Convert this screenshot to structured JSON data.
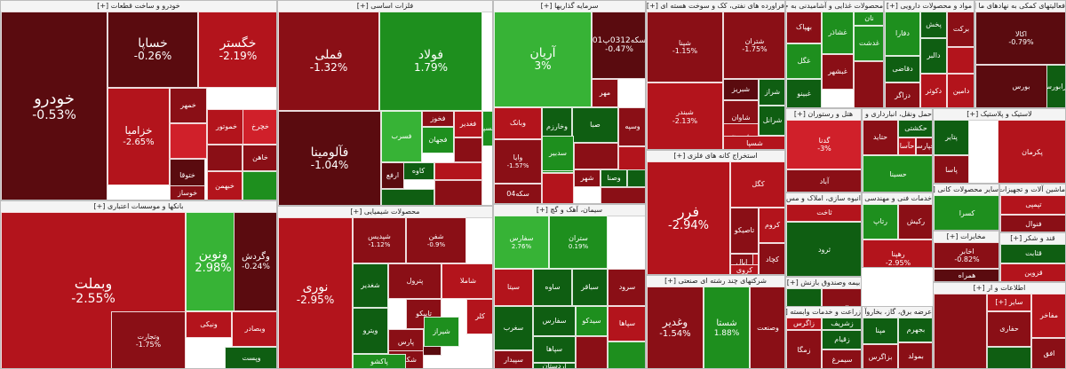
{
  "colors": {
    "deep_red": "#5a0b0f",
    "dark_red": "#8a0f16",
    "red": "#b3141c",
    "light_red": "#d0202a",
    "dark_green": "#0f5e12",
    "green": "#1e8f1e",
    "light_green": "#37b336"
  },
  "sectors": [
    {
      "title": "خودرو و ساخت قطعات [+]",
      "tiles": [
        {
          "name": "خودرو",
          "pct": "-0.53%",
          "color": "deep_red"
        },
        {
          "name": "خساپا",
          "pct": "-0.26%",
          "color": "deep_red"
        },
        {
          "name": "خگستر",
          "pct": "-2.19%",
          "color": "red"
        },
        {
          "name": "خزامیا",
          "pct": "-2.65%",
          "color": "red"
        },
        {
          "name": "خمهر",
          "pct": "",
          "color": "dark_red"
        },
        {
          "name": "ختوقا",
          "pct": "",
          "color": "deep_red"
        },
        {
          "name": "خموتور",
          "pct": "",
          "color": "red"
        },
        {
          "name": "خوساز",
          "pct": "",
          "color": "dark_red"
        },
        {
          "name": "خبهمن",
          "pct": "",
          "color": "red"
        },
        {
          "name": "خاهن",
          "pct": "",
          "color": "dark_red"
        },
        {
          "name": "خچرخ",
          "pct": "",
          "color": "light_red"
        }
      ]
    },
    {
      "title": "بانکها و موسسات اعتباری [+]",
      "tiles": [
        {
          "name": "وبملت",
          "pct": "-2.55%",
          "color": "red"
        },
        {
          "name": "ونوین",
          "pct": "2.98%",
          "color": "light_green"
        },
        {
          "name": "وگردش",
          "pct": "-0.24%",
          "color": "deep_red"
        },
        {
          "name": "ونیکی",
          "pct": "",
          "color": "red"
        },
        {
          "name": "وتجارت",
          "pct": "-1.75%",
          "color": "dark_red"
        },
        {
          "name": "وبصادر",
          "pct": "",
          "color": "red"
        },
        {
          "name": "وپست",
          "pct": "",
          "color": "dark_green"
        }
      ]
    },
    {
      "title": "فلزات اساسی [+]",
      "tiles": [
        {
          "name": "فملی",
          "pct": "-1.32%",
          "color": "dark_red"
        },
        {
          "name": "فولاد",
          "pct": "1.79%",
          "color": "green"
        },
        {
          "name": "فآلومینا",
          "pct": "-1.04%",
          "color": "deep_red"
        },
        {
          "name": "فسرب",
          "pct": "",
          "color": "light_green"
        },
        {
          "name": "فخوز",
          "pct": "",
          "color": "dark_red"
        },
        {
          "name": "فغدیر",
          "pct": "",
          "color": "red"
        },
        {
          "name": "فجهان",
          "pct": "",
          "color": "green"
        },
        {
          "name": "کاوه",
          "pct": "",
          "color": "dark_green"
        },
        {
          "name": "ارفع",
          "pct": "",
          "color": "deep_red"
        },
        {
          "name": "فسپا",
          "pct": "",
          "color": "green"
        }
      ]
    },
    {
      "title": "محصولات شیمیایی [+]",
      "tiles": [
        {
          "name": "نوری",
          "pct": "-2.95%",
          "color": "red"
        },
        {
          "name": "شپدیس",
          "pct": "-1.12%",
          "color": "dark_red"
        },
        {
          "name": "شفن",
          "pct": "-0.9%",
          "color": "dark_red"
        },
        {
          "name": "شغدیر",
          "pct": "",
          "color": "dark_green"
        },
        {
          "name": "پترول",
          "pct": "",
          "color": "dark_red"
        },
        {
          "name": "شاملا",
          "pct": "",
          "color": "red"
        },
        {
          "name": "تاپیکو",
          "pct": "",
          "color": "dark_red"
        },
        {
          "name": "آریا",
          "pct": "",
          "color": "deep_red"
        },
        {
          "name": "شیراز",
          "pct": "",
          "color": "green"
        },
        {
          "name": "ویترو",
          "pct": "",
          "color": "dark_green"
        },
        {
          "name": "پارس",
          "pct": "",
          "color": "dark_red"
        },
        {
          "name": "شکربن",
          "pct": "",
          "color": "dark_red"
        },
        {
          "name": "پاکشو",
          "pct": "",
          "color": "green"
        },
        {
          "name": "کلر",
          "pct": "",
          "color": "red"
        }
      ]
    },
    {
      "title": "سرمایه گذاریها [+]",
      "tiles": [
        {
          "name": "آریان",
          "pct": "3%",
          "color": "light_green"
        },
        {
          "name": "سکه0312پ01",
          "pct": "-0.47%",
          "color": "deep_red"
        },
        {
          "name": "وسپه",
          "pct": "",
          "color": "dark_red"
        },
        {
          "name": "صبا",
          "pct": "",
          "color": "dark_green"
        },
        {
          "name": "وخارزم",
          "pct": "",
          "color": "dark_green"
        },
        {
          "name": "مهر",
          "pct": "",
          "color": "dark_red"
        },
        {
          "name": "وبانک",
          "pct": "",
          "color": "red"
        },
        {
          "name": "وایا",
          "pct": "-1.57%",
          "color": "dark_red"
        },
        {
          "name": "والبر",
          "pct": "",
          "color": "green"
        },
        {
          "name": "سدبیر",
          "pct": "",
          "color": "green"
        },
        {
          "name": "شهر",
          "pct": "",
          "color": "dark_red"
        },
        {
          "name": "وصنا",
          "pct": "",
          "color": "dark_green"
        },
        {
          "name": "سکه04",
          "pct": "",
          "color": "dark_red"
        }
      ]
    },
    {
      "title": "سیمان، آهک و گچ [+]",
      "tiles": [
        {
          "name": "سفارس",
          "pct": "2.76%",
          "color": "light_green"
        },
        {
          "name": "ستران",
          "pct": "0.19%",
          "color": "green"
        },
        {
          "name": "سیتا",
          "pct": "",
          "color": "red"
        },
        {
          "name": "ساوه",
          "pct": "",
          "color": "dark_green"
        },
        {
          "name": "سباقر",
          "pct": "",
          "color": "dark_green"
        },
        {
          "name": "سرود",
          "pct": "",
          "color": "dark_red"
        },
        {
          "name": "سفارس",
          "pct": "",
          "color": "dark_green"
        },
        {
          "name": "سیدکو",
          "pct": "",
          "color": "green"
        },
        {
          "name": "سپاها",
          "pct": "",
          "color": "red"
        },
        {
          "name": "سغرب",
          "pct": "",
          "color": "dark_green"
        },
        {
          "name": "سپیدار",
          "pct": "",
          "color": "dark_red"
        },
        {
          "name": "سپاها",
          "pct": "",
          "color": "dark_green"
        },
        {
          "name": "اردستان",
          "pct": "",
          "color": "dark_green"
        }
      ]
    },
    {
      "title": "فراورده های نفتی، کک و سوخت هسته ای [+]",
      "tiles": [
        {
          "name": "شپنا",
          "pct": "-1.15%",
          "color": "dark_red"
        },
        {
          "name": "شتران",
          "pct": "-1.75%",
          "color": "dark_red"
        },
        {
          "name": "شبندر",
          "pct": "-2.13%",
          "color": "red"
        },
        {
          "name": "شبریز",
          "pct": "",
          "color": "deep_red"
        },
        {
          "name": "شراز",
          "pct": "",
          "color": "dark_green"
        },
        {
          "name": "شاوان",
          "pct": "",
          "color": "dark_red"
        },
        {
          "name": "شبهرن",
          "pct": "",
          "color": "red"
        },
        {
          "name": "شسپا",
          "pct": "",
          "color": "red"
        },
        {
          "name": "شرانل",
          "pct": "",
          "color": "dark_green"
        }
      ]
    },
    {
      "title": "استخراج کانه های فلزی [+]",
      "tiles": [
        {
          "name": "فرر",
          "pct": "-2.94%",
          "color": "red"
        },
        {
          "name": "کگل",
          "pct": "",
          "color": "red"
        },
        {
          "name": "کروم",
          "pct": "",
          "color": "red"
        },
        {
          "name": "کچاد",
          "pct": "",
          "color": "dark_red"
        },
        {
          "name": "تاصیکو",
          "pct": "",
          "color": "dark_red"
        },
        {
          "name": "کدرو",
          "pct": "",
          "color": "red"
        },
        {
          "name": "ابال",
          "pct": "",
          "color": "dark_red"
        },
        {
          "name": "کروی",
          "pct": "",
          "color": "red"
        }
      ]
    },
    {
      "title": "شرکتهای چند رشته ای صنعتی [+]",
      "tiles": [
        {
          "name": "وغدیر",
          "pct": "-1.54%",
          "color": "dark_red"
        },
        {
          "name": "شستا",
          "pct": "1.88%",
          "color": "green"
        },
        {
          "name": "وصنعت",
          "pct": "",
          "color": "dark_red"
        }
      ]
    },
    {
      "title": "محصولات غذایی و آشامیدنی به جز [+]",
      "tiles": [
        {
          "name": "بهپاک",
          "pct": "",
          "color": "dark_red"
        },
        {
          "name": "غگل",
          "pct": "",
          "color": "green"
        },
        {
          "name": "غبشهر",
          "pct": "",
          "color": "dark_red"
        },
        {
          "name": "غدشت",
          "pct": "",
          "color": "green"
        },
        {
          "name": "غبینو",
          "pct": "",
          "color": "dark_green"
        },
        {
          "name": "نان",
          "pct": "",
          "color": "green"
        },
        {
          "name": "غشاذر",
          "pct": "",
          "color": "green"
        }
      ]
    },
    {
      "title": "مواد و محصولات دارویی [+]",
      "tiles": [
        {
          "name": "دفارا",
          "pct": "",
          "color": "green"
        },
        {
          "name": "دقاضی",
          "pct": "",
          "color": "dark_green"
        },
        {
          "name": "دالبر",
          "pct": "",
          "color": "dark_green"
        },
        {
          "name": "دکوثر",
          "pct": "",
          "color": "red"
        },
        {
          "name": "دزاگر",
          "pct": "",
          "color": "dark_red"
        },
        {
          "name": "دامین",
          "pct": "",
          "color": "red"
        },
        {
          "name": "پخش",
          "pct": "",
          "color": "dark_green"
        },
        {
          "name": "برکت",
          "pct": "",
          "color": "dark_red"
        }
      ]
    },
    {
      "title": "فعالیتهای کمکی به نهادهای ما [+]",
      "tiles": [
        {
          "name": "اکالا",
          "pct": "-0.79%",
          "color": "deep_red"
        },
        {
          "name": "بورس",
          "pct": "",
          "color": "deep_red"
        },
        {
          "name": "فرابورس",
          "pct": "",
          "color": "dark_green"
        }
      ]
    },
    {
      "title": "هتل و رستوران [+]",
      "tiles": [
        {
          "name": "گدنا",
          "pct": "-3%",
          "color": "light_red"
        },
        {
          "name": "آباد",
          "pct": "",
          "color": "dark_red"
        }
      ]
    },
    {
      "title": "حمل ونقل، انبارداری و ار [+]",
      "tiles": [
        {
          "name": "حتاید",
          "pct": "",
          "color": "dark_red"
        },
        {
          "name": "حسینا",
          "pct": "",
          "color": "green"
        },
        {
          "name": "حکشتی",
          "pct": "",
          "color": "dark_green"
        },
        {
          "name": "حآسا",
          "pct": "",
          "color": "red"
        },
        {
          "name": "حپارسا",
          "pct": "",
          "color": "dark_red"
        }
      ]
    },
    {
      "title": "لاستیک و پلاستیک [+]",
      "tiles": [
        {
          "name": "پکرمان",
          "pct": "",
          "color": "red"
        },
        {
          "name": "پتایر",
          "pct": "",
          "color": "dark_green"
        },
        {
          "name": "پاسا",
          "pct": "",
          "color": "dark_red"
        }
      ]
    },
    {
      "title": "خدمات فنی و مهندسی [+]",
      "tiles": [
        {
          "name": "رتاپ",
          "pct": "",
          "color": "green"
        },
        {
          "name": "رکیش",
          "pct": "",
          "color": "dark_red"
        },
        {
          "name": "رهپنا",
          "pct": "-2.95%",
          "color": "red"
        }
      ]
    },
    {
      "title": "انبوه سازی، املاک و مس [+]",
      "tiles": [
        {
          "name": "ثامان",
          "pct": "",
          "color": "dark_red"
        },
        {
          "name": "ثاخت",
          "pct": "",
          "color": "red"
        },
        {
          "name": "ثرود",
          "pct": "",
          "color": "dark_green"
        },
        {
          "name": "ثشاهد",
          "pct": "",
          "color": "dark_red"
        },
        {
          "name": "ثبهساز",
          "pct": "",
          "color": "dark_red"
        }
      ]
    },
    {
      "title": "سایر محصولات کانی [+]",
      "tiles": [
        {
          "name": "کسرا",
          "pct": "",
          "color": "green"
        },
        {
          "name": "کساوه",
          "pct": "",
          "color": "dark_red"
        },
        {
          "name": "کفرا",
          "pct": "",
          "color": "dark_red"
        }
      ]
    },
    {
      "title": "ماشین آلات و تجهیزات [+]",
      "tiles": [
        {
          "name": "تپمپی",
          "pct": "",
          "color": "red"
        },
        {
          "name": "فنوال",
          "pct": "",
          "color": "dark_red"
        },
        {
          "name": "تکشا",
          "pct": "",
          "color": "dark_green"
        }
      ]
    },
    {
      "title": "بیمه وصندوق بازنش [+]",
      "tiles": [
        {
          "name": "اتکای",
          "pct": "",
          "color": "dark_green"
        },
        {
          "name": "البرز",
          "pct": "",
          "color": "dark_red"
        },
        {
          "name": "کوثر",
          "pct": "",
          "color": "dark_red"
        },
        {
          "name": "ومعلم",
          "pct": "",
          "color": "red"
        }
      ]
    },
    {
      "title": "مخابرات [+]",
      "tiles": [
        {
          "name": "اخابر",
          "pct": "-0.82%",
          "color": "dark_red"
        },
        {
          "name": "همراه",
          "pct": "",
          "color": "deep_red"
        }
      ]
    },
    {
      "title": "قند و شکر [+]",
      "tiles": [
        {
          "name": "قثابت",
          "pct": "",
          "color": "dark_green"
        },
        {
          "name": "قزوین",
          "pct": "",
          "color": "red"
        }
      ]
    },
    {
      "title": "زراعت و خدمات وابسته [+]",
      "tiles": [
        {
          "name": "زشریف",
          "pct": "",
          "color": "dark_green"
        },
        {
          "name": "زمگا",
          "pct": "",
          "color": "dark_red"
        },
        {
          "name": "زقیام",
          "pct": "",
          "color": "dark_green"
        },
        {
          "name": "سیمرغ",
          "pct": "",
          "color": "dark_red"
        },
        {
          "name": "زاگرس",
          "pct": "",
          "color": "red"
        }
      ]
    },
    {
      "title": "عرضه برق، گاز، بخاروآ [+]",
      "tiles": [
        {
          "name": "بجهرم",
          "pct": "",
          "color": "dark_green"
        },
        {
          "name": "بمولد",
          "pct": "",
          "color": "dark_red"
        },
        {
          "name": "مپنا",
          "pct": "",
          "color": "dark_green"
        },
        {
          "name": "بزاگرس",
          "pct": "",
          "color": "dark_red"
        }
      ]
    },
    {
      "title": "اطلاعات و ار [+]",
      "tiles": [
        {
          "name": "مفاخر",
          "pct": "",
          "color": "red"
        },
        {
          "name": "افق",
          "pct": "",
          "color": "dark_red"
        },
        {
          "name": "حفاری",
          "pct": "",
          "color": "dark_red"
        },
        {
          "name": "سایر [+]",
          "pct": "",
          "color": "red"
        }
      ]
    }
  ]
}
